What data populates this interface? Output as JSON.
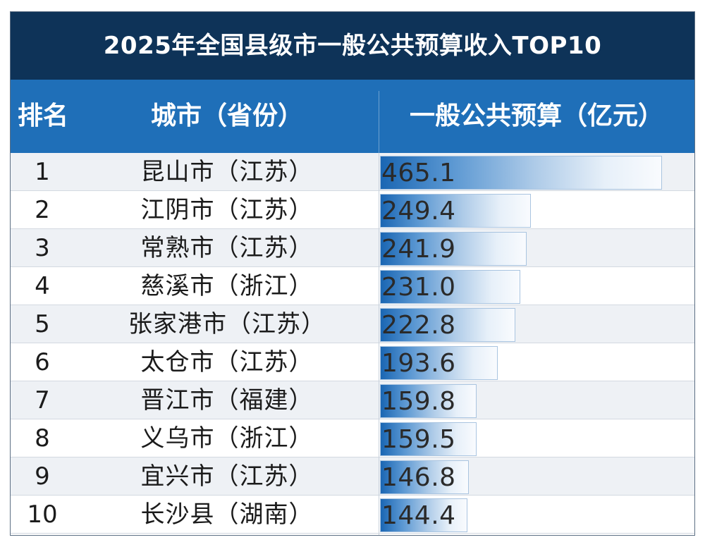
{
  "chart_data": {
    "type": "bar",
    "title": "2025年全国县级市一般公共预算收入TOP10",
    "columns": {
      "rank": "排名",
      "city": "城市（省份）",
      "value": "一般公共预算（亿元）"
    },
    "rows": [
      {
        "rank": "1",
        "city": "昆山市（江苏）",
        "value": 465.1,
        "label": "465.1"
      },
      {
        "rank": "2",
        "city": "江阴市（江苏）",
        "value": 249.4,
        "label": "249.4"
      },
      {
        "rank": "3",
        "city": "常熟市（江苏）",
        "value": 241.9,
        "label": "241.9"
      },
      {
        "rank": "4",
        "city": "慈溪市（浙江）",
        "value": 231.0,
        "label": "231.0"
      },
      {
        "rank": "5",
        "city": "张家港市（江苏）",
        "value": 222.8,
        "label": "222.8"
      },
      {
        "rank": "6",
        "city": "太仓市（江苏）",
        "value": 193.6,
        "label": "193.6"
      },
      {
        "rank": "7",
        "city": "晋江市（福建）",
        "value": 159.8,
        "label": "159.8"
      },
      {
        "rank": "8",
        "city": "义乌市（浙江）",
        "value": 159.5,
        "label": "159.5"
      },
      {
        "rank": "9",
        "city": "宜兴市（江苏）",
        "value": 146.8,
        "label": "146.8"
      },
      {
        "rank": "10",
        "city": "长沙县（湖南）",
        "value": 144.4,
        "label": "144.4"
      }
    ],
    "colors": {
      "title_bg": "#0e3358",
      "header_bg": "#1f6fb8",
      "bar_start": "#1a66b3",
      "bar_end": "#f9fbfe",
      "alt_row": "#eef1f5"
    }
  }
}
